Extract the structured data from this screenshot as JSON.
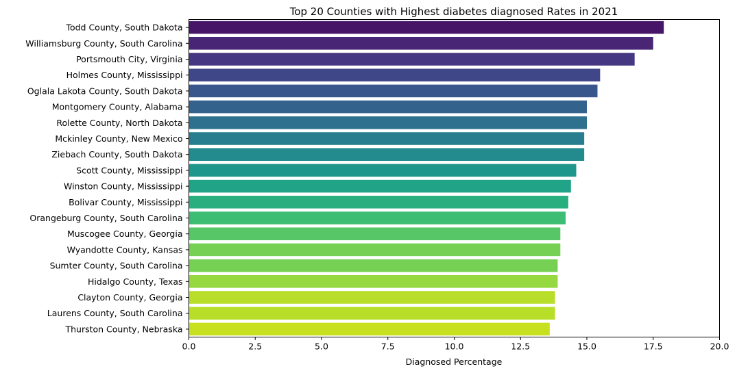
{
  "chart_data": {
    "type": "bar",
    "orientation": "horizontal",
    "title": "Top 20 Counties with Highest diabetes diagnosed Rates in 2021",
    "xlabel": "Diagnosed Percentage",
    "ylabel": "",
    "xlim": [
      0,
      20
    ],
    "xticks": [
      "0.0",
      "2.5",
      "5.0",
      "7.5",
      "10.0",
      "12.5",
      "15.0",
      "17.5",
      "20.0"
    ],
    "grid": false,
    "legend": "none",
    "colormap": "viridis",
    "categories": [
      "Todd County, South Dakota",
      "Williamsburg County, South Carolina",
      "Portsmouth City, Virginia",
      "Holmes County, Mississippi",
      "Oglala Lakota County, South Dakota",
      "Montgomery County, Alabama",
      "Rolette County, North Dakota",
      "Mckinley County, New Mexico",
      "Ziebach County, South Dakota",
      "Scott County, Mississippi",
      "Winston County, Mississippi",
      "Bolivar County, Mississippi",
      "Orangeburg County, South Carolina",
      "Muscogee County, Georgia",
      "Wyandotte County, Kansas",
      "Sumter County, South Carolina",
      "Hidalgo County, Texas",
      "Clayton County, Georgia",
      "Laurens County, South Carolina",
      "Thurston County, Nebraska"
    ],
    "values": [
      17.9,
      17.5,
      16.8,
      15.5,
      15.4,
      15.0,
      15.0,
      14.9,
      14.9,
      14.6,
      14.4,
      14.3,
      14.2,
      14.0,
      14.0,
      13.9,
      13.9,
      13.8,
      13.8,
      13.6
    ],
    "colors": [
      "#471567",
      "#482575",
      "#453781",
      "#3f4788",
      "#39568c",
      "#33638d",
      "#2d718e",
      "#287d8e",
      "#238a8d",
      "#1f968b",
      "#20a386",
      "#29af7f",
      "#3dbc74",
      "#56c667",
      "#75d054",
      "#75d054",
      "#95d840",
      "#b8de29",
      "#b8de29",
      "#c7e020"
    ]
  }
}
